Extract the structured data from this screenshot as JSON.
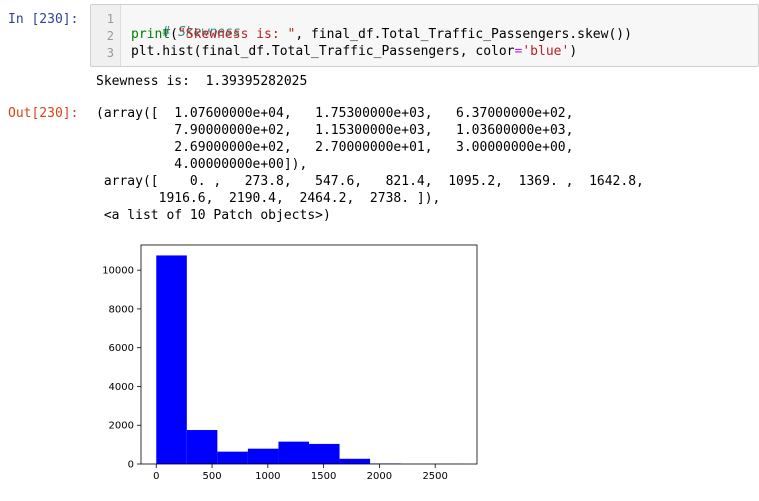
{
  "input_prompt": "In [230]:",
  "output_prompt": "Out[230]:",
  "code": {
    "line_numbers": [
      "1",
      "2",
      "3"
    ],
    "line1_comment": "# Skewness",
    "line2_print": "print",
    "line2_open": "(",
    "line2_string": "\"Skewness is: \"",
    "line2_rest": ", final_df.Total_Traffic_Passengers.skew())",
    "line3_prefix": "plt.hist(final_df.Total_Traffic_Passengers, color",
    "line3_eq": "=",
    "line3_string": "'blue'",
    "line3_close": ")"
  },
  "stdout": "Skewness is:  1.39395282025",
  "output_lines": [
    "(array([  1.07600000e+04,   1.75300000e+03,   6.37000000e+02,",
    "          7.90000000e+02,   1.15300000e+03,   1.03600000e+03,",
    "          2.69000000e+02,   2.70000000e+01,   3.00000000e+00,",
    "          4.00000000e+00]),",
    " array([    0. ,   273.8,   547.6,   821.4,  1095.2,  1369. ,  1642.8,",
    "        1916.6,  2190.4,  2464.2,  2738. ]),",
    " <a list of 10 Patch objects>)"
  ],
  "chart_data": {
    "type": "bar",
    "title": "",
    "xlabel": "",
    "ylabel": "",
    "bin_edges": [
      0,
      273.8,
      547.6,
      821.4,
      1095.2,
      1369,
      1642.8,
      1916.6,
      2190.4,
      2464.2,
      2738
    ],
    "values": [
      10760,
      1753,
      637,
      790,
      1153,
      1036,
      269,
      27,
      3,
      4
    ],
    "xlim": [
      -136.9,
      2874.9
    ],
    "ylim": [
      0,
      11298
    ],
    "xticks": [
      0,
      500,
      1000,
      1500,
      2000,
      2500
    ],
    "yticks": [
      0,
      2000,
      4000,
      6000,
      8000,
      10000
    ],
    "bar_color": "#0000ff",
    "grid": false
  }
}
